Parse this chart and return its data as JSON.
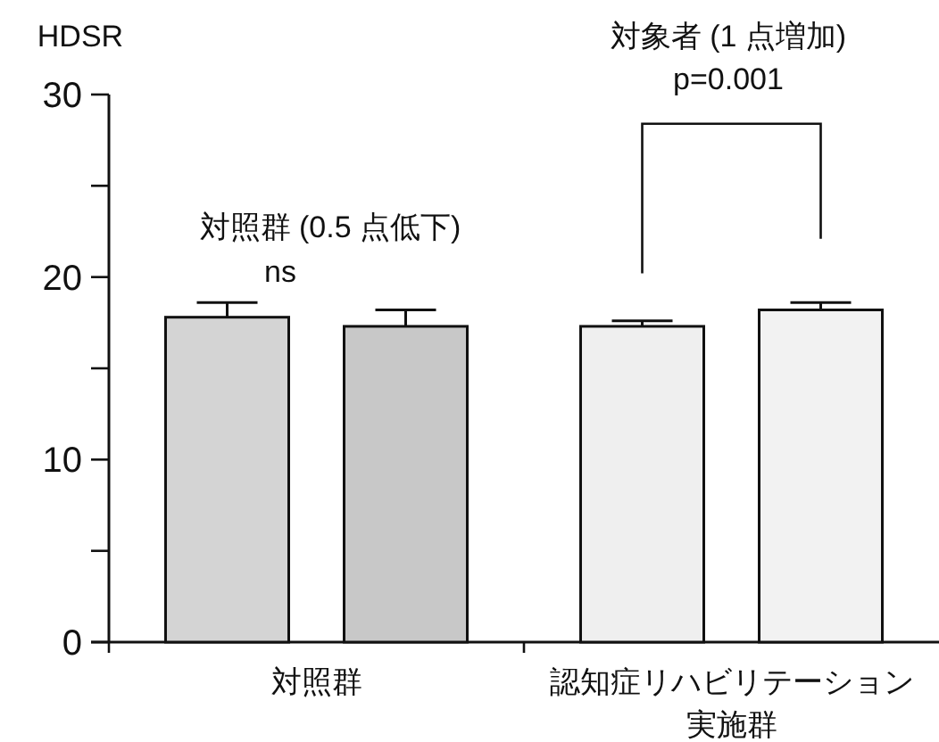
{
  "chart_data": {
    "type": "bar",
    "ylabel": "HDSR",
    "categories": [
      "対照群",
      "認知症リハビリテーション実施群"
    ],
    "series": [
      {
        "colors": [
          "#d4d4d4",
          "#efefef"
        ],
        "values": [
          17.8,
          17.3
        ],
        "errors": [
          0.8,
          0.3
        ]
      },
      {
        "colors": [
          "#c8c8c8",
          "#f2f2f2"
        ],
        "values": [
          17.3,
          18.2
        ],
        "errors": [
          0.9,
          0.4
        ]
      }
    ],
    "ylim": [
      0,
      30
    ],
    "yticks": [
      0,
      {
        "value": 5,
        "label": null
      },
      10,
      {
        "value": 15,
        "label": null
      },
      20,
      {
        "value": 25,
        "label": null
      },
      30
    ],
    "grid": false,
    "annotations": [
      "対照群 (0.5 点低下)",
      "ns",
      "対象者 (1 点増加)",
      "p=0.001"
    ]
  }
}
